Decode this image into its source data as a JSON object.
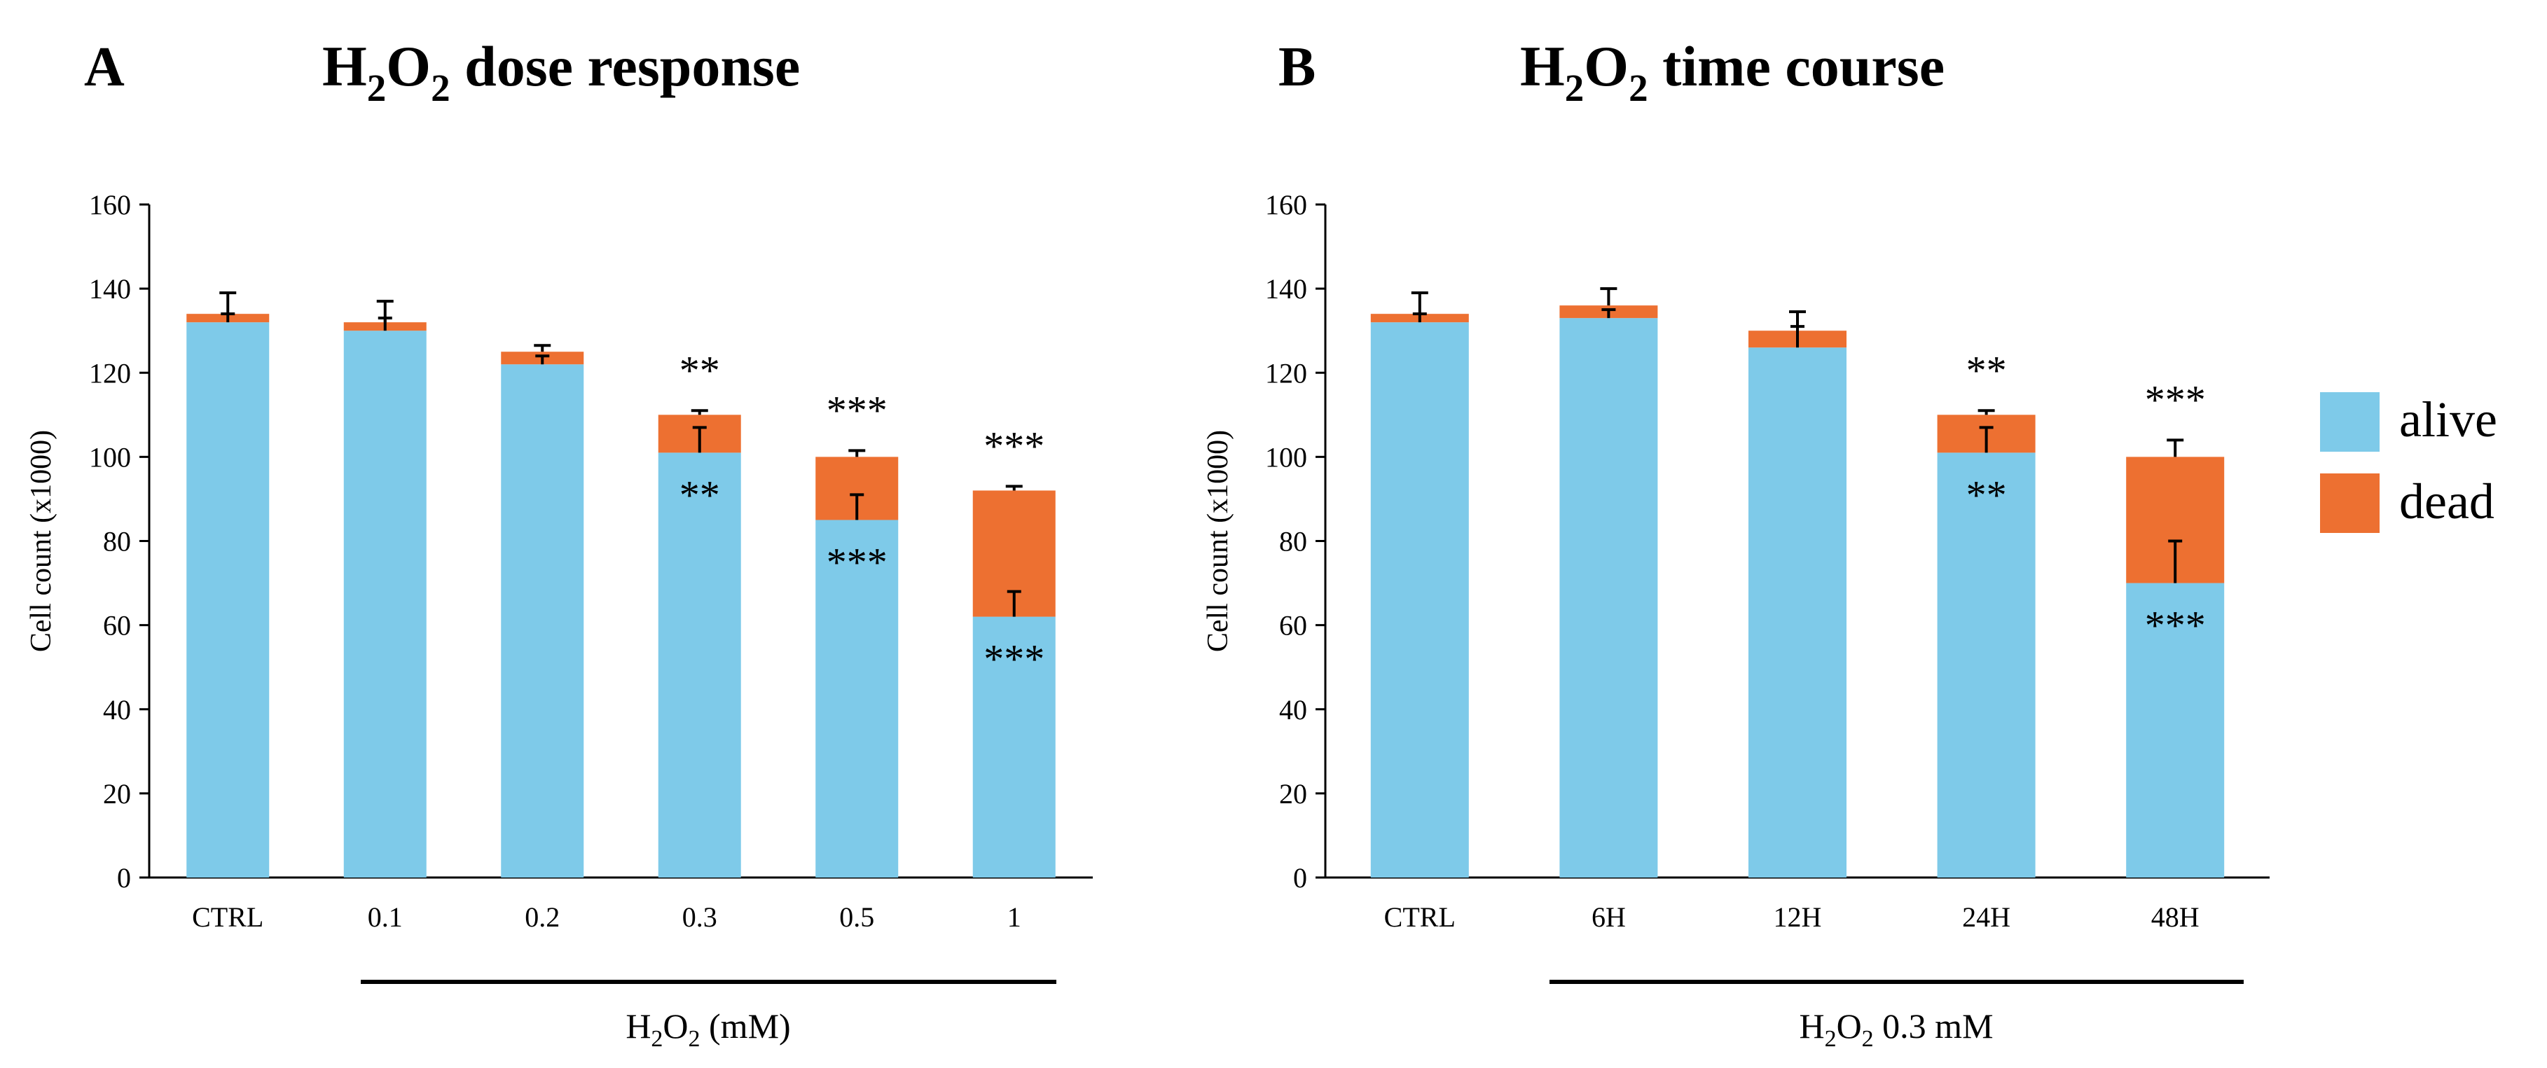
{
  "panels": [
    {
      "letter": "A",
      "title_main": "H",
      "title_sub1": "2",
      "title_mid": "O",
      "title_sub2": "2",
      "title_rest": " dose response",
      "xgroup_pre": "H",
      "xgroup_sub1": "2",
      "xgroup_mid": "O",
      "xgroup_sub2": "2",
      "xgroup_rest": " (mM)"
    },
    {
      "letter": "B",
      "title_main": "H",
      "title_sub1": "2",
      "title_mid": "O",
      "title_sub2": "2",
      "title_rest": " time course",
      "xgroup_pre": "H",
      "xgroup_sub1": "2",
      "xgroup_mid": "O",
      "xgroup_sub2": "2",
      "xgroup_rest": " 0.3 mM"
    }
  ],
  "legend": {
    "alive": "alive",
    "dead": "dead"
  },
  "colors": {
    "alive": "#7ecae9",
    "dead": "#ed7031",
    "axis": "#000000"
  },
  "chart_data": [
    {
      "type": "bar",
      "stacked": true,
      "title": "H2O2 dose response",
      "xlabel": "H2O2 (mM)",
      "ylabel": "Cell count (x1000)",
      "ylim": [
        0,
        160
      ],
      "yticks": [
        0,
        20,
        40,
        60,
        80,
        100,
        120,
        140,
        160
      ],
      "categories": [
        "CTRL",
        "0.1",
        "0.2",
        "0.3",
        "0.5",
        "1"
      ],
      "series": [
        {
          "name": "alive",
          "values": [
            132,
            130,
            122,
            101,
            85,
            62
          ]
        },
        {
          "name": "dead",
          "values": [
            2,
            2,
            3,
            9,
            15,
            30
          ]
        }
      ],
      "alive_error": [
        2,
        3,
        2,
        6,
        6,
        6
      ],
      "total_error": [
        5,
        5,
        1.5,
        1,
        1.5,
        1
      ],
      "sig_alive": [
        "",
        "",
        "",
        "**",
        "***",
        "***"
      ],
      "sig_dead": [
        "",
        "",
        "",
        "**",
        "***",
        "***"
      ],
      "legend_position": "right"
    },
    {
      "type": "bar",
      "stacked": true,
      "title": "H2O2 time course",
      "xlabel": "H2O2 0.3 mM",
      "ylabel": "Cell count (x1000)",
      "ylim": [
        0,
        160
      ],
      "yticks": [
        0,
        20,
        40,
        60,
        80,
        100,
        120,
        140,
        160
      ],
      "categories": [
        "CTRL",
        "6H",
        "12H",
        "24H",
        "48H"
      ],
      "series": [
        {
          "name": "alive",
          "values": [
            132,
            133,
            126,
            101,
            70
          ]
        },
        {
          "name": "dead",
          "values": [
            2,
            3,
            4,
            9,
            30
          ]
        }
      ],
      "alive_error": [
        2,
        2,
        5,
        6,
        10
      ],
      "total_error": [
        5,
        4,
        4.5,
        1,
        4
      ],
      "sig_alive": [
        "",
        "",
        "",
        "**",
        "***"
      ],
      "sig_dead": [
        "",
        "",
        "",
        "**",
        "***"
      ],
      "legend_position": "right"
    }
  ]
}
